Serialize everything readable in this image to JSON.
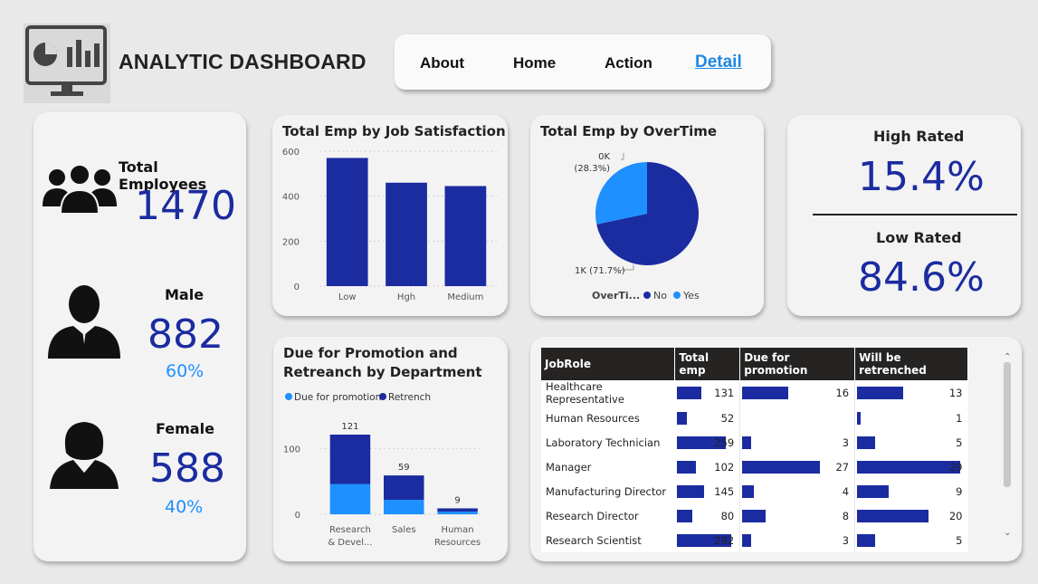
{
  "header": {
    "title": "ANALYTIC DASHBOARD",
    "nav": [
      "About",
      "Home",
      "Action",
      "Detail"
    ],
    "active_nav": "Detail"
  },
  "summary": {
    "total_label": "Total Employees",
    "total_value": "1470",
    "male_label": "Male",
    "male_value": "882",
    "male_pct": "60%",
    "female_label": "Female",
    "female_value": "588",
    "female_pct": "40%"
  },
  "rated": {
    "high_label": "High Rated",
    "high_value": "15.4%",
    "low_label": "Low Rated",
    "low_value": "84.6%"
  },
  "colors": {
    "dark_blue": "#1b2ba0",
    "light_blue": "#1e90ff"
  },
  "chart_data": [
    {
      "type": "bar",
      "title": "Total Emp by Job Satisfaction",
      "categories": [
        "Low",
        "Hgh",
        "Medium"
      ],
      "values": [
        570,
        460,
        445
      ],
      "yticks": [
        "0",
        "200",
        "400",
        "600"
      ],
      "ylim": [
        0,
        600
      ]
    },
    {
      "type": "pie",
      "title": "Total Emp by OverTime",
      "legend_title": "OverTi...",
      "slices": [
        {
          "name": "No",
          "value": 71.7,
          "label": "1K (71.7%)",
          "color": "#1b2ba0"
        },
        {
          "name": "Yes",
          "value": 28.3,
          "label": "0K\n(28.3%)",
          "color": "#1e90ff"
        }
      ],
      "label_no": "1K (71.7%)",
      "label_yes_top": "0K",
      "label_yes_bottom": "(28.3%)"
    },
    {
      "type": "bar",
      "title_line1": "Due for Promotion and",
      "title_line2": "Retreanch by Department",
      "legend": [
        "Due for promotion",
        "Retrench"
      ],
      "categories": [
        "Research & Devel...",
        "Sales",
        "Human Resources"
      ],
      "cat_lines": [
        [
          "Research",
          "& Devel..."
        ],
        [
          "Sales"
        ],
        [
          "Human",
          "Resources"
        ]
      ],
      "series": [
        {
          "name": "Due for promotion",
          "values": [
            46,
            22,
            4
          ]
        },
        {
          "name": "Retrench",
          "values": [
            75,
            37,
            5
          ]
        }
      ],
      "totals": [
        "121",
        "59",
        "9"
      ],
      "yticks": [
        "0",
        "100"
      ],
      "ylim": [
        0,
        121
      ]
    }
  ],
  "table": {
    "columns": [
      "JobRole",
      "Total emp",
      "Due for promotion",
      "Will be retrenched"
    ],
    "rows": [
      {
        "role": "Healthcare Representative",
        "total": "131",
        "promo": "16",
        "retrench": "13",
        "t": 131,
        "p": 16,
        "r": 13
      },
      {
        "role": "Human Resources",
        "total": "52",
        "promo": "",
        "retrench": "1",
        "t": 52,
        "p": 0,
        "r": 1
      },
      {
        "role": "Laboratory Technician",
        "total": "259",
        "promo": "3",
        "retrench": "5",
        "t": 259,
        "p": 3,
        "r": 5
      },
      {
        "role": "Manager",
        "total": "102",
        "promo": "27",
        "retrench": "29",
        "t": 102,
        "p": 27,
        "r": 29
      },
      {
        "role": "Manufacturing Director",
        "total": "145",
        "promo": "4",
        "retrench": "9",
        "t": 145,
        "p": 4,
        "r": 9
      },
      {
        "role": "Research Director",
        "total": "80",
        "promo": "8",
        "retrench": "20",
        "t": 80,
        "p": 8,
        "r": 20
      },
      {
        "role": "Research Scientist",
        "total": "292",
        "promo": "3",
        "retrench": "5",
        "t": 292,
        "p": 3,
        "r": 5
      }
    ],
    "max": {
      "t": 292,
      "p": 27,
      "r": 29
    }
  }
}
